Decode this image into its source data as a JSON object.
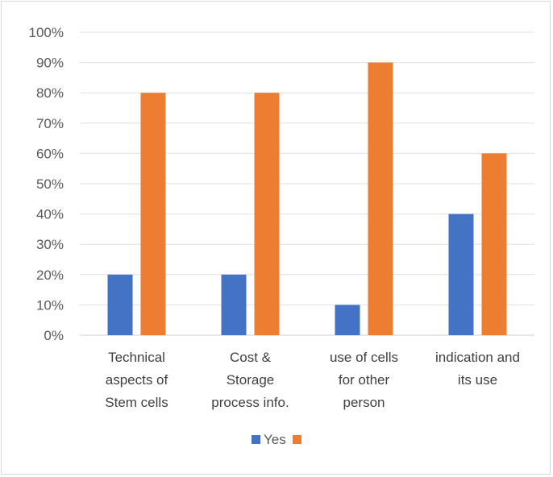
{
  "chart_data": {
    "type": "bar",
    "title": "",
    "xlabel": "",
    "ylabel": "",
    "ylim": [
      0,
      100
    ],
    "y_tick_labels": [
      "0%",
      "10%",
      "20%",
      "30%",
      "40%",
      "50%",
      "60%",
      "70%",
      "80%",
      "90%",
      "100%"
    ],
    "categories": [
      [
        "Technical",
        "aspects of",
        "Stem cells"
      ],
      [
        "Cost &",
        "Storage",
        "process info."
      ],
      [
        "use of cells",
        "for other",
        "person"
      ],
      [
        "indication and",
        "its use"
      ]
    ],
    "series": [
      {
        "name": "Yes",
        "color": "#4472c4",
        "values": [
          20,
          20,
          10,
          40
        ]
      },
      {
        "name": "",
        "color": "#ed7d31",
        "values": [
          80,
          80,
          90,
          60
        ]
      }
    ],
    "grid": true,
    "legend": "bottom"
  }
}
